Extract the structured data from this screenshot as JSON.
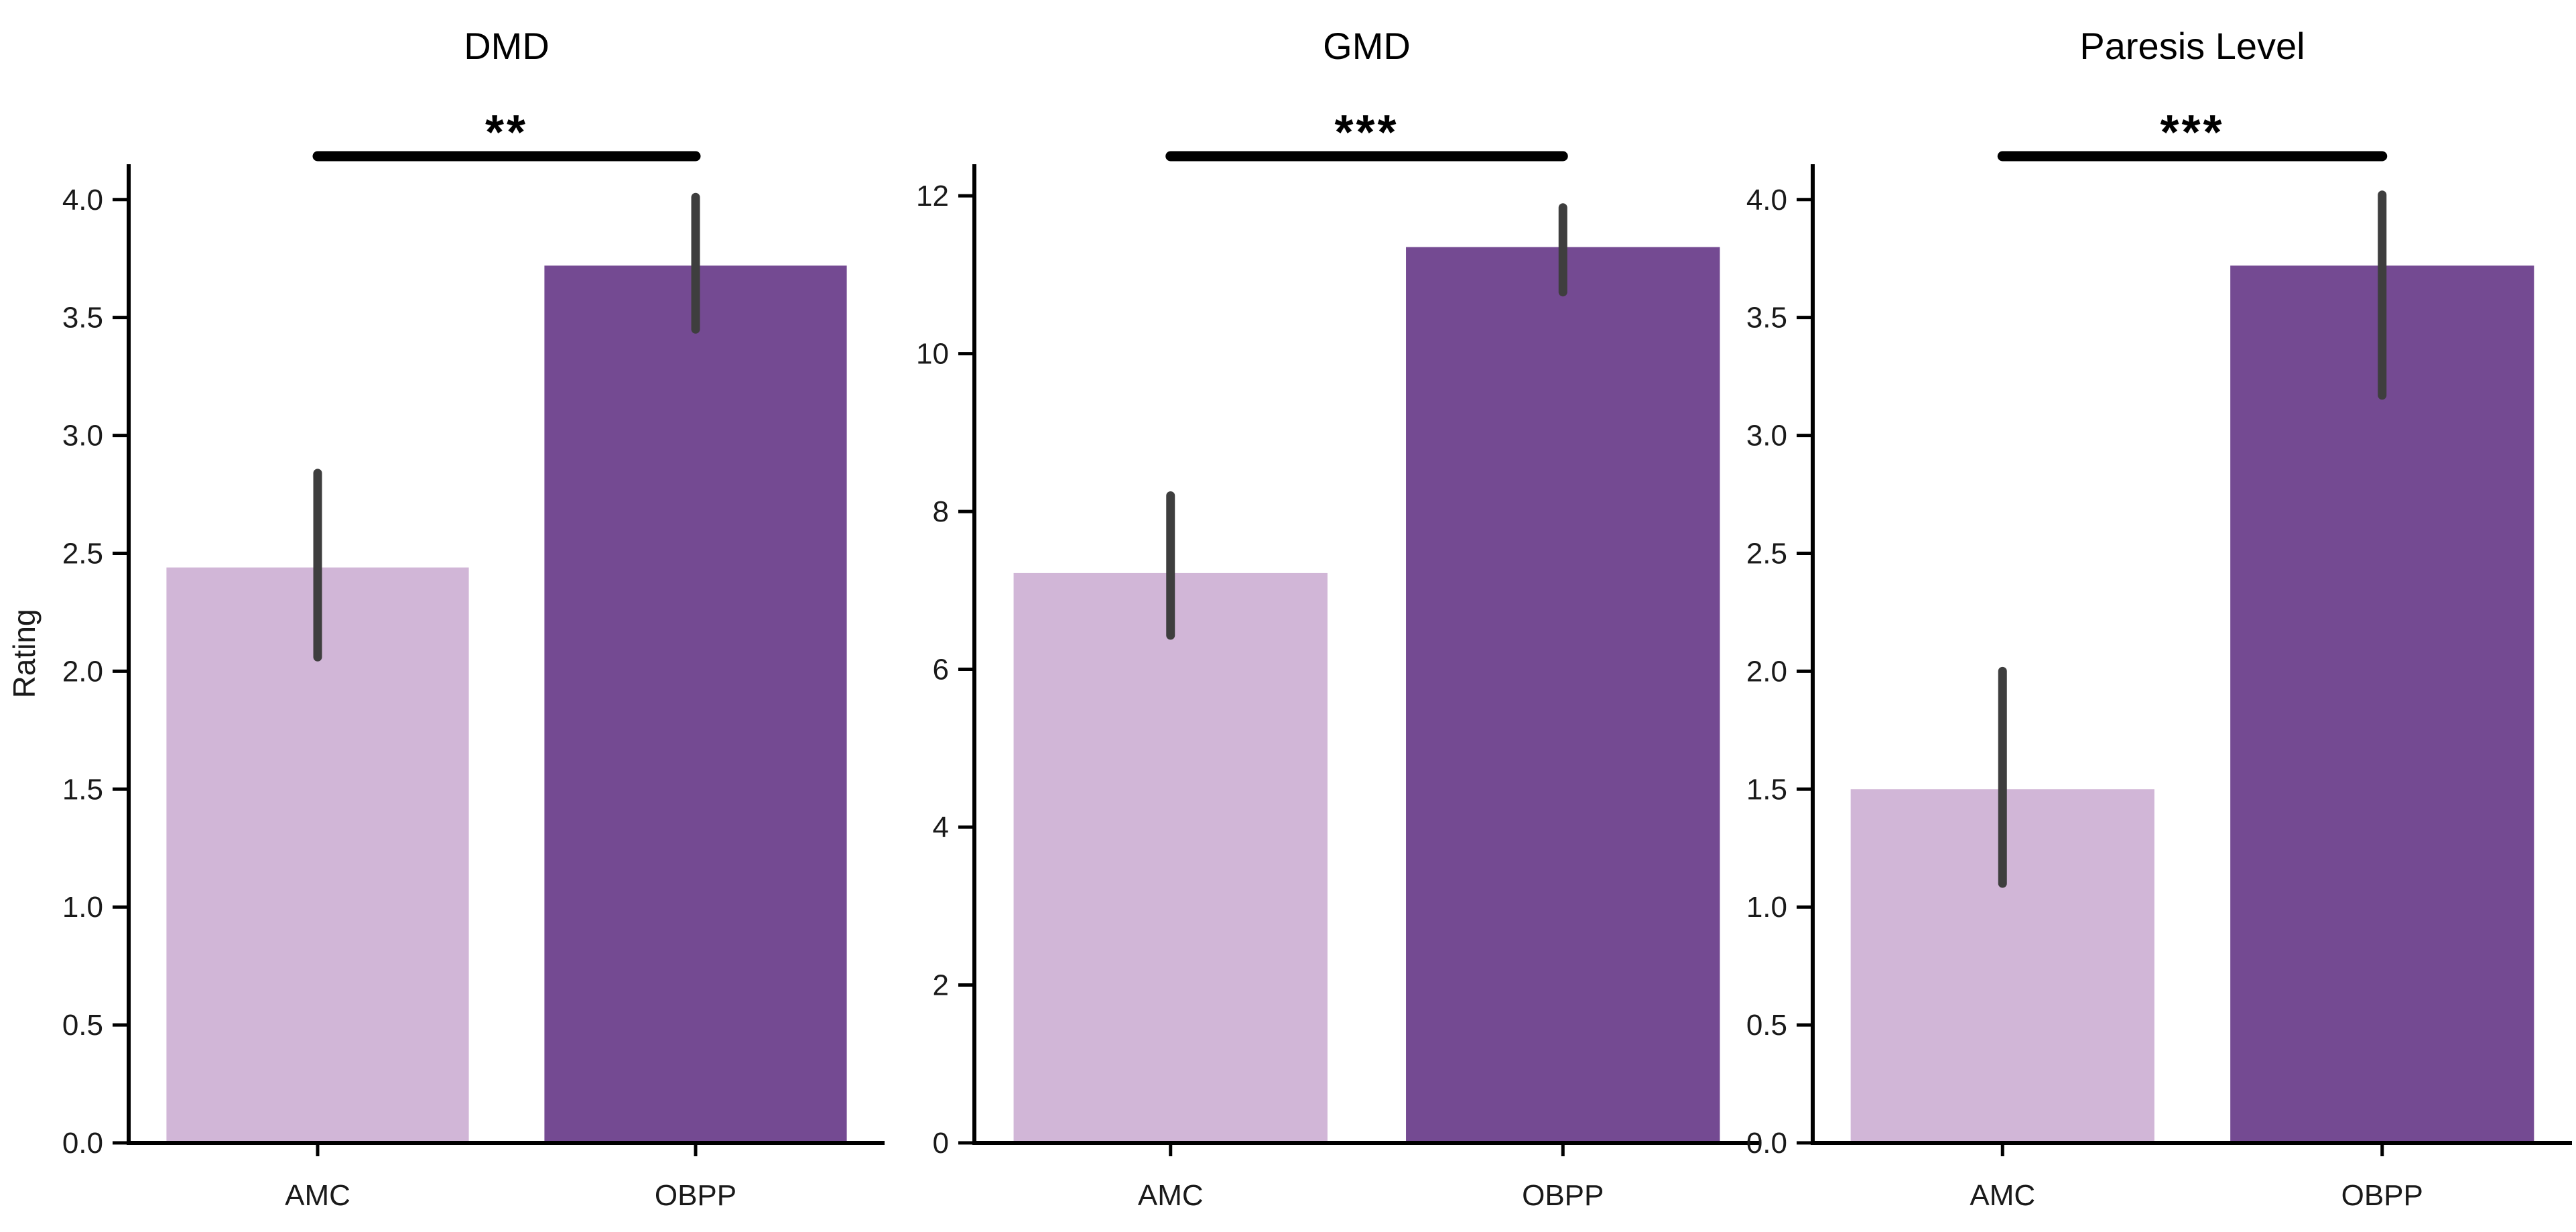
{
  "figure": {
    "background": "#ffffff",
    "ylabel": "Rating"
  },
  "colors": {
    "amc_bar": "#d1b6d7",
    "obpp_bar": "#744a92",
    "error_bar": "#3e3e3e",
    "axis": "#000000",
    "tick_label": "#1a1a1a",
    "sig": "#000000"
  },
  "chart_data": [
    {
      "type": "bar",
      "title": "DMD",
      "categories": [
        "AMC",
        "OBPP"
      ],
      "values": [
        2.44,
        3.72
      ],
      "error_low": [
        2.06,
        3.45
      ],
      "error_high": [
        2.84,
        4.01
      ],
      "significance": "**",
      "ylabel": "Rating",
      "ylim": [
        0,
        4.15
      ],
      "yticks": [
        0.0,
        0.5,
        1.0,
        1.5,
        2.0,
        2.5,
        3.0,
        3.5,
        4.0
      ],
      "ytick_labels": [
        "0.0",
        "0.5",
        "1.0",
        "1.5",
        "2.0",
        "2.5",
        "3.0",
        "3.5",
        "4.0"
      ],
      "grid": false,
      "legend": null
    },
    {
      "type": "bar",
      "title": "GMD",
      "categories": [
        "AMC",
        "OBPP"
      ],
      "values": [
        7.22,
        11.35
      ],
      "error_low": [
        6.43,
        10.78
      ],
      "error_high": [
        8.2,
        11.85
      ],
      "significance": "***",
      "ylabel": "",
      "ylim": [
        0,
        12.4
      ],
      "yticks": [
        0,
        2,
        4,
        6,
        8,
        10,
        12
      ],
      "ytick_labels": [
        "0",
        "2",
        "4",
        "6",
        "8",
        "10",
        "12"
      ],
      "grid": false,
      "legend": null
    },
    {
      "type": "bar",
      "title": "Paresis Level",
      "categories": [
        "AMC",
        "OBPP"
      ],
      "values": [
        1.5,
        3.72
      ],
      "error_low": [
        1.1,
        3.17
      ],
      "error_high": [
        2.0,
        4.02
      ],
      "significance": "***",
      "ylabel": "",
      "ylim": [
        0,
        4.15
      ],
      "yticks": [
        0.0,
        0.5,
        1.0,
        1.5,
        2.0,
        2.5,
        3.0,
        3.5,
        4.0
      ],
      "ytick_labels": [
        "0.0",
        "0.5",
        "1.0",
        "1.5",
        "2.0",
        "2.5",
        "3.0",
        "3.5",
        "4.0"
      ],
      "grid": false,
      "legend": null
    }
  ]
}
